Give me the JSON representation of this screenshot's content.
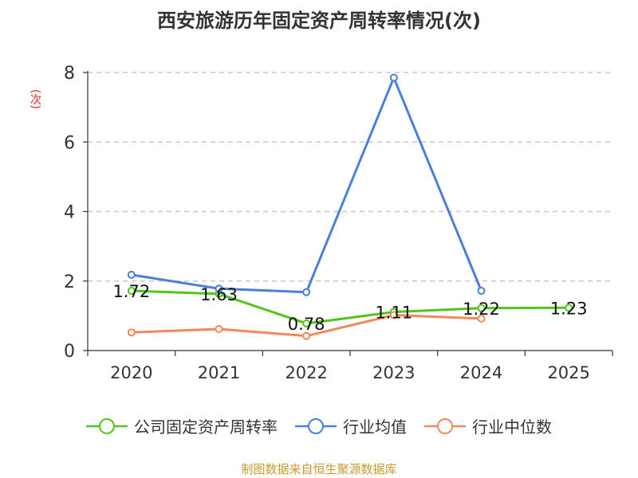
{
  "chart_data": {
    "type": "line",
    "title": "西安旅游历年固定资产周转率情况(次)",
    "ylabel": "(次)",
    "x": [
      "2020",
      "2021",
      "2022",
      "2023",
      "2024",
      "2025"
    ],
    "ylim": [
      0,
      8
    ],
    "yticks": [
      0,
      2,
      4,
      6,
      8
    ],
    "grid": true,
    "legend_position": "bottom",
    "series": [
      {
        "name": "公司固定资产周转率",
        "color": "#52c41a",
        "values": [
          1.72,
          1.63,
          0.78,
          1.11,
          1.22,
          1.23
        ],
        "labels": [
          "1.72",
          "1.63",
          "0.78",
          "1.11",
          "1.22",
          "1.23"
        ]
      },
      {
        "name": "行业均值",
        "color": "#4a7fdb",
        "values": [
          2.18,
          1.78,
          1.68,
          7.85,
          1.72,
          null
        ]
      },
      {
        "name": "行业中位数",
        "color": "#f0895a",
        "values": [
          0.52,
          0.62,
          0.42,
          1.02,
          0.92,
          null
        ]
      }
    ]
  },
  "footer": {
    "source": "制图数据来自恒生聚源数据库"
  }
}
